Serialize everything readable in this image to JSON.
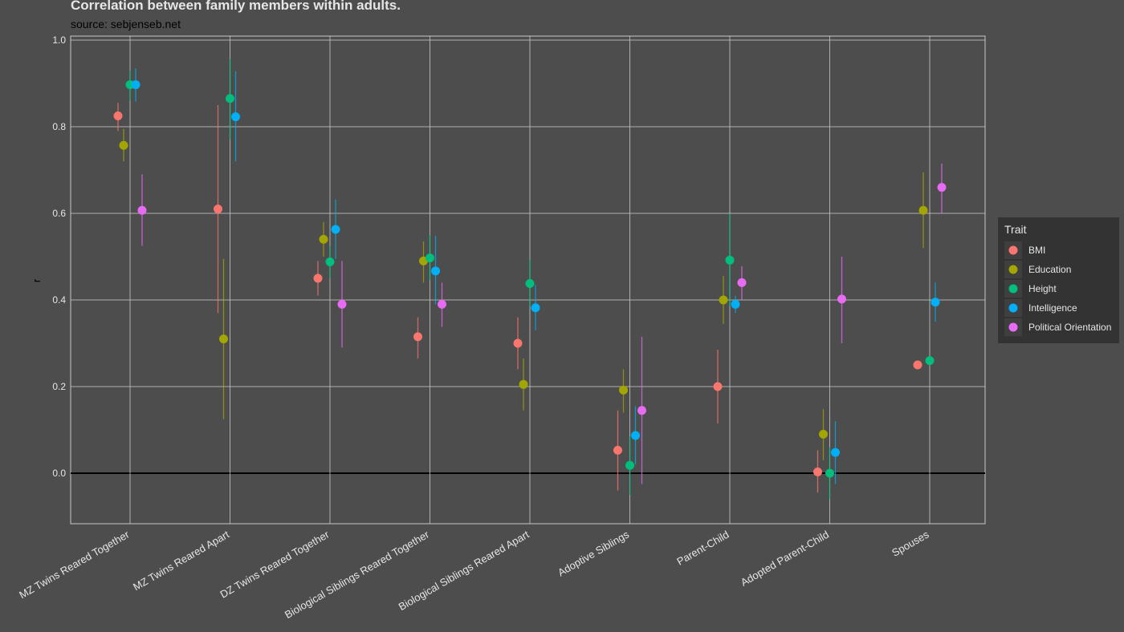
{
  "title": "Correlation between family members within adults.",
  "subtitle": "source: sebjenseb.net",
  "colors": {
    "background": "#4d4d4d",
    "grid": "#c8c8c8",
    "zero_line": "#000000",
    "text": "#e6e6e6",
    "legend_bg": "#333333"
  },
  "chart_data": {
    "type": "scatter",
    "title": "Correlation between family members within adults.",
    "subtitle": "source: sebjenseb.net",
    "xlabel": "",
    "ylabel": "r",
    "ylim": [
      -0.12,
      1.0
    ],
    "yticks": [
      "0.0",
      "0.2",
      "0.4",
      "0.6",
      "0.8",
      "1.0"
    ],
    "grid": true,
    "legend_title": "Trait",
    "legend_position": "right",
    "categories": [
      "MZ Twins Reared Together",
      "MZ Twins Reared Apart",
      "DZ Twins Reared Together",
      "Biological Siblings Reared Together",
      "Biological Siblings Reared Apart",
      "Adoptive Siblings",
      "Parent-Child",
      "Adopted Parent-Child",
      "Spouses"
    ],
    "series": [
      {
        "name": "BMI",
        "color": "#f8766d",
        "values": [
          0.825,
          0.61,
          0.45,
          0.315,
          0.3,
          0.053,
          0.2,
          0.003,
          0.25
        ],
        "lower": [
          0.79,
          0.37,
          0.41,
          0.265,
          0.24,
          -0.04,
          0.115,
          -0.045,
          null
        ],
        "upper": [
          0.855,
          0.85,
          0.49,
          0.36,
          0.36,
          0.145,
          0.285,
          0.053,
          null
        ]
      },
      {
        "name": "Education",
        "color": "#a3a500",
        "values": [
          0.757,
          0.31,
          0.54,
          0.49,
          0.205,
          0.192,
          0.4,
          0.09,
          0.607
        ],
        "lower": [
          0.72,
          0.125,
          0.5,
          0.44,
          0.145,
          0.14,
          0.345,
          0.03,
          0.52
        ],
        "upper": [
          0.795,
          0.495,
          0.58,
          0.535,
          0.265,
          0.24,
          0.455,
          0.148,
          0.695
        ]
      },
      {
        "name": "Height",
        "color": "#00bf7d",
        "values": [
          0.897,
          0.865,
          0.488,
          0.497,
          0.438,
          0.018,
          0.492,
          0.0,
          0.26
        ],
        "lower": [
          0.86,
          0.77,
          0.45,
          0.445,
          0.385,
          -0.05,
          0.385,
          -0.06,
          null
        ],
        "upper": [
          0.93,
          0.957,
          0.525,
          0.55,
          0.493,
          0.085,
          0.6,
          0.06,
          null
        ]
      },
      {
        "name": "Intelligence",
        "color": "#00b0f6",
        "values": [
          0.897,
          0.823,
          0.563,
          0.467,
          0.382,
          0.087,
          0.39,
          0.048,
          0.395
        ],
        "lower": [
          0.858,
          0.72,
          0.495,
          0.39,
          0.33,
          0.02,
          0.37,
          -0.025,
          0.35
        ],
        "upper": [
          0.935,
          0.928,
          0.632,
          0.548,
          0.435,
          0.155,
          0.41,
          0.12,
          0.44
        ]
      },
      {
        "name": "Political Orientation",
        "color": "#e76bf3",
        "values": [
          0.607,
          null,
          0.39,
          0.39,
          null,
          0.145,
          0.44,
          0.402,
          0.66
        ],
        "lower": [
          0.525,
          null,
          0.29,
          0.338,
          null,
          -0.025,
          0.4,
          0.3,
          0.6
        ],
        "upper": [
          0.69,
          null,
          0.49,
          0.44,
          null,
          0.315,
          0.478,
          0.5,
          0.715
        ]
      }
    ]
  }
}
